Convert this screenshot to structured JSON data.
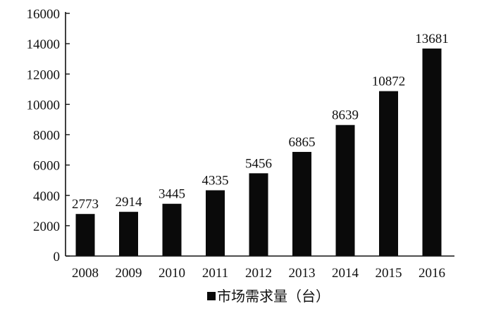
{
  "chart_data": {
    "type": "bar",
    "categories": [
      "2008",
      "2009",
      "2010",
      "2011",
      "2012",
      "2013",
      "2014",
      "2015",
      "2016"
    ],
    "series": [
      {
        "name": "市场需求量（台）",
        "values": [
          2773,
          2914,
          3445,
          4335,
          5456,
          6865,
          8639,
          10872,
          13681
        ],
        "color": "#0a0a0a"
      }
    ],
    "data_labels": [
      "2773",
      "2914",
      "3445",
      "4335",
      "5456",
      "6865",
      "8639",
      "10872",
      "13681"
    ],
    "yticks": [
      0,
      2000,
      4000,
      6000,
      8000,
      10000,
      12000,
      14000,
      16000
    ],
    "ylim": [
      0,
      16000
    ],
    "legend": {
      "label": "市场需求量（台）",
      "position": "bottom"
    },
    "grid": false,
    "title": "",
    "xlabel": "",
    "ylabel": ""
  }
}
